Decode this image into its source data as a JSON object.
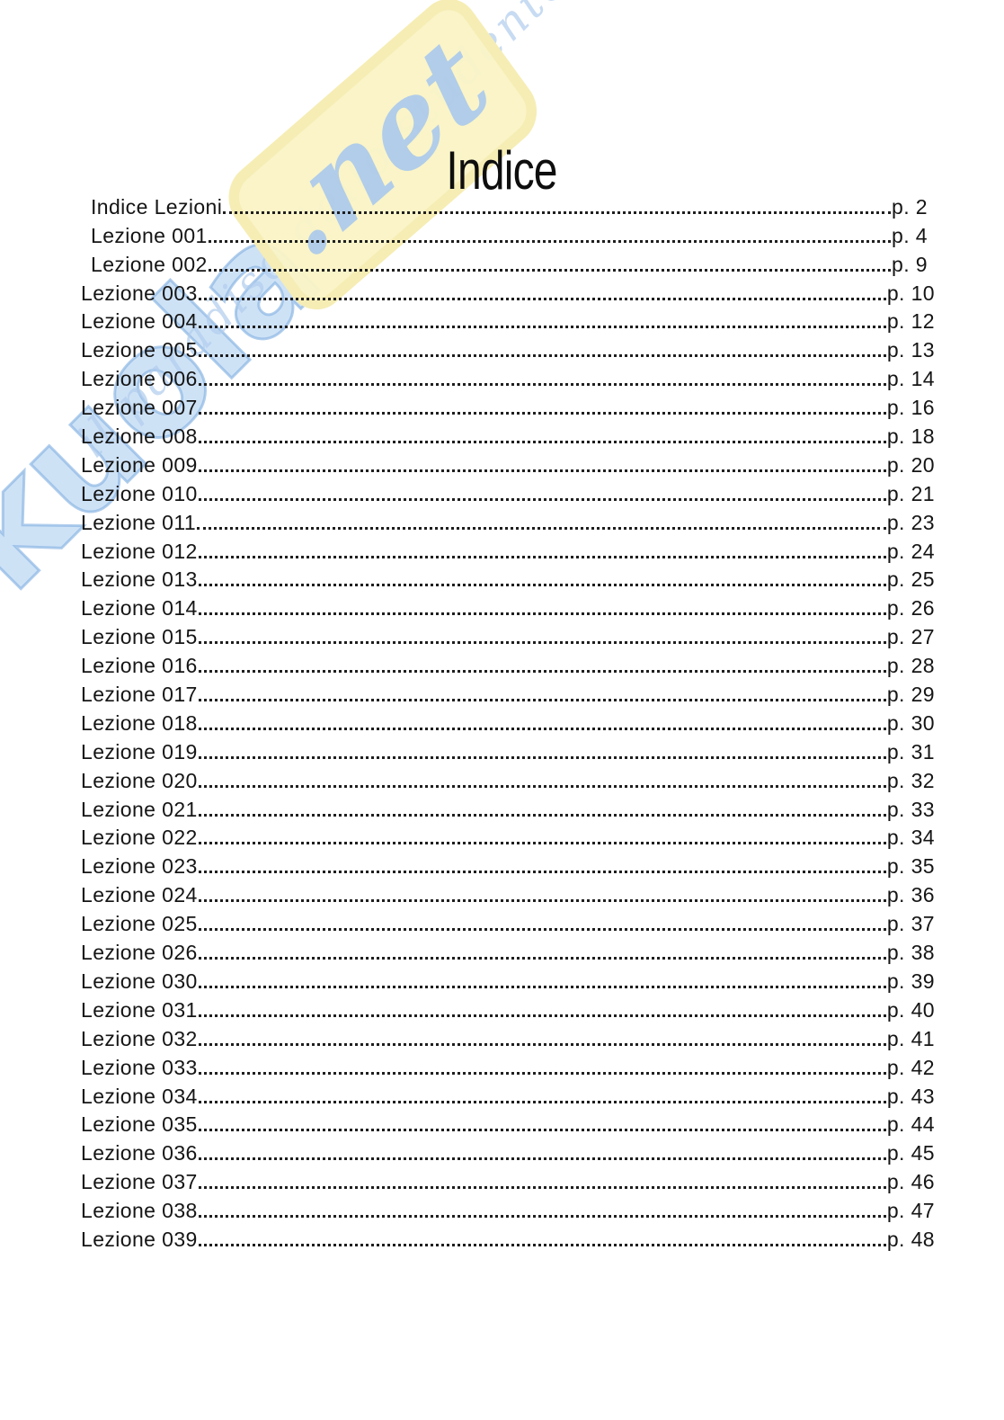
{
  "page": {
    "title": "Indice"
  },
  "watermark": {
    "brand": "Skuola",
    "net_label": ".net",
    "tagline": "il paradiso dello studente",
    "colors": {
      "letters_blue": "#a9cbec",
      "badge_yellow": "#faf4c6",
      "script_blue": "#b9d2ee"
    }
  },
  "toc": {
    "entries": [
      {
        "label": "Indice Lezioni",
        "page": "p. 2",
        "indent": true
      },
      {
        "label": "Lezione 001",
        "page": "p. 4",
        "indent": true
      },
      {
        "label": "Lezione 002",
        "page": "p. 9",
        "indent": true
      },
      {
        "label": "Lezione 003",
        "page": "p. 10",
        "indent": false
      },
      {
        "label": "Lezione 004",
        "page": "p. 12",
        "indent": false
      },
      {
        "label": "Lezione 005",
        "page": "p. 13",
        "indent": false
      },
      {
        "label": "Lezione 006",
        "page": "p. 14",
        "indent": false
      },
      {
        "label": "Lezione 007",
        "page": "p. 16",
        "indent": false
      },
      {
        "label": "Lezione 008",
        "page": "p. 18",
        "indent": false
      },
      {
        "label": "Lezione 009",
        "page": "p. 20",
        "indent": false
      },
      {
        "label": "Lezione 010",
        "page": "p. 21",
        "indent": false
      },
      {
        "label": "Lezione 011",
        "page": "p. 23",
        "indent": false
      },
      {
        "label": "Lezione 012",
        "page": "p. 24",
        "indent": false
      },
      {
        "label": "Lezione 013",
        "page": "p. 25",
        "indent": false
      },
      {
        "label": "Lezione 014",
        "page": "p. 26",
        "indent": false
      },
      {
        "label": "Lezione 015",
        "page": "p. 27",
        "indent": false
      },
      {
        "label": "Lezione 016",
        "page": "p. 28",
        "indent": false
      },
      {
        "label": "Lezione 017",
        "page": "p. 29",
        "indent": false
      },
      {
        "label": "Lezione 018",
        "page": "p. 30",
        "indent": false
      },
      {
        "label": "Lezione 019",
        "page": "p. 31",
        "indent": false
      },
      {
        "label": "Lezione 020",
        "page": "p. 32",
        "indent": false
      },
      {
        "label": "Lezione 021",
        "page": "p. 33",
        "indent": false
      },
      {
        "label": "Lezione 022",
        "page": "p. 34",
        "indent": false
      },
      {
        "label": "Lezione 023",
        "page": "p. 35",
        "indent": false
      },
      {
        "label": "Lezione 024",
        "page": "p. 36",
        "indent": false
      },
      {
        "label": "Lezione 025",
        "page": "p. 37",
        "indent": false
      },
      {
        "label": "Lezione 026",
        "page": "p. 38",
        "indent": false
      },
      {
        "label": "Lezione 030",
        "page": "p. 39",
        "indent": false
      },
      {
        "label": "Lezione 031",
        "page": "p. 40",
        "indent": false
      },
      {
        "label": "Lezione 032",
        "page": "p. 41",
        "indent": false
      },
      {
        "label": "Lezione 033",
        "page": "p. 42",
        "indent": false
      },
      {
        "label": "Lezione 034",
        "page": "p. 43",
        "indent": false
      },
      {
        "label": "Lezione 035",
        "page": "p. 44",
        "indent": false
      },
      {
        "label": "Lezione 036",
        "page": "p. 45",
        "indent": false
      },
      {
        "label": "Lezione 037",
        "page": "p. 46",
        "indent": false
      },
      {
        "label": "Lezione 038",
        "page": "p. 47",
        "indent": false
      },
      {
        "label": "Lezione 039",
        "page": "p. 48",
        "indent": false
      }
    ]
  }
}
